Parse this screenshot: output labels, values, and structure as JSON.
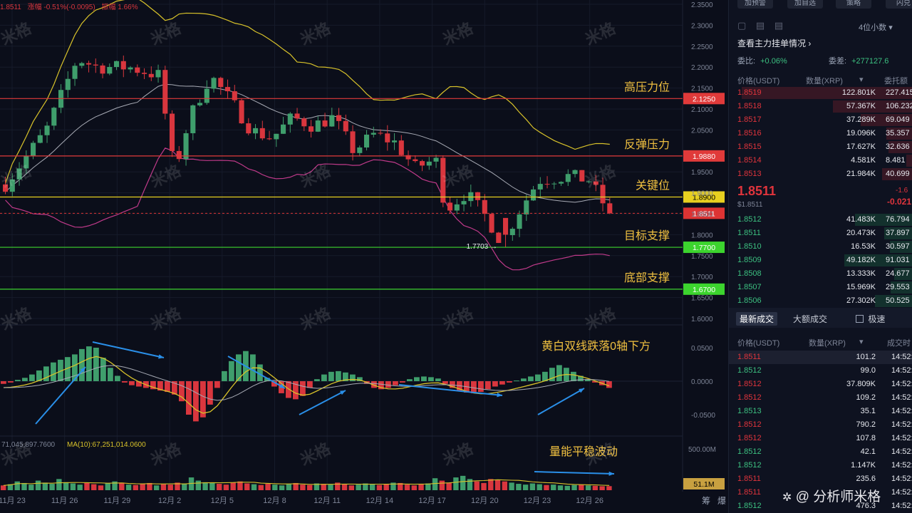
{
  "header_info": {
    "price": "1.8511",
    "change": "涨幅 -0.51%(-0.0095)",
    "amplitude": "振幅 1.66%"
  },
  "watermark": "米格",
  "footer_brand": "@ 分析师米格",
  "chart_data": [
    {
      "type": "candlestick",
      "title": "",
      "xlabel": "",
      "ylabel": "",
      "ylim": [
        1.55,
        2.36
      ],
      "y_ticks": [
        "2.3500",
        "2.3000",
        "2.2500",
        "2.2000",
        "2.1500",
        "2.1000",
        "2.0500",
        "1.9500",
        "1.9000",
        "1.8500",
        "1.8000",
        "1.7500",
        "1.7000",
        "1.6500",
        "1.6000"
      ],
      "x_ticks": [
        "11月 23",
        "11月 26",
        "11月 29",
        "12月 2",
        "12月 5",
        "12月 8",
        "12月 11",
        "12月 14",
        "12月 17",
        "12月 20",
        "12月 23",
        "12月 26"
      ],
      "close_path": [
        [
          0,
          1.92
        ],
        [
          4,
          2.05
        ],
        [
          7,
          2.22
        ],
        [
          9,
          2.2
        ],
        [
          12,
          2.2
        ],
        [
          15,
          2.18
        ],
        [
          16.5,
          1.95
        ],
        [
          18,
          2.08
        ],
        [
          20,
          2.18
        ],
        [
          22,
          2.12
        ],
        [
          24,
          2.05
        ],
        [
          26,
          2.03
        ],
        [
          28,
          2.08
        ],
        [
          30,
          2.06
        ],
        [
          32,
          2.08
        ],
        [
          34,
          2.0
        ],
        [
          36,
          2.04
        ],
        [
          38,
          2.02
        ],
        [
          40,
          1.96
        ],
        [
          42,
          1.98
        ],
        [
          43,
          1.86
        ],
        [
          45,
          1.9
        ],
        [
          47,
          1.84
        ],
        [
          48.5,
          1.78
        ],
        [
          50,
          1.85
        ],
        [
          52,
          1.93
        ],
        [
          55,
          1.94
        ],
        [
          57,
          1.93
        ],
        [
          59,
          1.85
        ]
      ],
      "price_lines": [
        {
          "value": 2.125,
          "label": "2.1250",
          "color": "#e03a3a",
          "annotation": "高压力位"
        },
        {
          "value": 1.988,
          "label": "1.9880",
          "color": "#e03a3a",
          "annotation": "反弹压力"
        },
        {
          "value": 1.89,
          "label": "1.8900",
          "color": "#e8d020",
          "annotation": "关键位"
        },
        {
          "value": 1.77,
          "label": "1.7700",
          "color": "#3cd42e",
          "annotation": "目标支撑"
        },
        {
          "value": 1.67,
          "label": "1.6700",
          "color": "#3cd42e",
          "annotation": "底部支撑"
        }
      ],
      "current_price": {
        "value": 1.8511,
        "label": "1.8511",
        "color": "#d33"
      },
      "low_marker": {
        "value": 1.7703,
        "label": "1.7703"
      }
    },
    {
      "type": "bar",
      "title": "",
      "y_ticks": [
        "0.0500",
        "0.0000",
        "-0.0500"
      ],
      "ylim": [
        -0.08,
        0.09
      ],
      "annotation": "黄白双线跌落0轴下方",
      "macd_hist": [
        -0.004,
        -0.002,
        0.002,
        0.005,
        0.01,
        0.016,
        0.022,
        0.028,
        0.032,
        0.036,
        0.04,
        0.048,
        0.052,
        0.05,
        0.035,
        0.02,
        0.008,
        -0.002,
        -0.006,
        -0.008,
        -0.01,
        -0.012,
        -0.014,
        -0.016,
        -0.02,
        -0.03,
        -0.05,
        -0.06,
        -0.054,
        -0.035,
        -0.01,
        0.015,
        0.03,
        0.04,
        0.045,
        0.04,
        0.025,
        0.005,
        -0.008,
        -0.018,
        -0.025,
        -0.027,
        -0.022,
        -0.01,
        0.003,
        0.01,
        0.014,
        0.015,
        0.013,
        0.01,
        0.006,
        -0.004,
        -0.01,
        -0.012,
        -0.01,
        -0.006,
        -0.002,
        0.003,
        0.006,
        0.007,
        0.006,
        0.004,
        -0.004,
        -0.01,
        -0.014,
        -0.017,
        -0.018,
        -0.016,
        -0.012,
        -0.008,
        -0.005,
        -0.002,
        0.001,
        0.004,
        0.007,
        0.01,
        0.014,
        0.02,
        0.024,
        0.02,
        0.014,
        0.008,
        0.003,
        -0.002,
        -0.006,
        -0.01
      ]
    },
    {
      "type": "bar",
      "title": "",
      "y_ticks": [
        "500.00M"
      ],
      "ylim": [
        0,
        580
      ],
      "annotation": "量能平稳波动",
      "legend_left": "71,045,897.7600",
      "ma_label": "MA(10):67,251,014.0600",
      "current_label": "51.1M",
      "volume_m": [
        60,
        75,
        110,
        90,
        70,
        120,
        95,
        80,
        140,
        100,
        85,
        70,
        90,
        75,
        60,
        85,
        110,
        95,
        70,
        65,
        80,
        90,
        60,
        75,
        70,
        95,
        85,
        160,
        120,
        100,
        90,
        80,
        70,
        95,
        110,
        85,
        75,
        65,
        80,
        70,
        60,
        75,
        90,
        70,
        65,
        85,
        80,
        70,
        95,
        75,
        60,
        70,
        85,
        75,
        65,
        80,
        95,
        90,
        70,
        60,
        75,
        85,
        150,
        120,
        95,
        160,
        180,
        140,
        110,
        90,
        140,
        130,
        110,
        95,
        80,
        70,
        85,
        75,
        65,
        70,
        60,
        55,
        65,
        70,
        60,
        55,
        50,
        51
      ]
    }
  ],
  "top_buttons": [
    "加预警",
    "加自选",
    "策略",
    "闪兑"
  ],
  "orderbook": {
    "interval": "4位小数",
    "main_link": "查看主力挂单情况",
    "ratio_label": "委比:",
    "ratio_value": "+0.06%",
    "diff_label": "委差:",
    "diff_value": "+277127.6",
    "headers": [
      "价格(USDT)",
      "数量(XRP)",
      "委托额"
    ],
    "asks": [
      {
        "price": "1.8519",
        "qty": "122.801K",
        "total": "227.415"
      },
      {
        "price": "1.8518",
        "qty": "57.367K",
        "total": "106.232"
      },
      {
        "price": "1.8517",
        "qty": "37.289K",
        "total": "69.049"
      },
      {
        "price": "1.8516",
        "qty": "19.096K",
        "total": "35.357"
      },
      {
        "price": "1.8515",
        "qty": "17.627K",
        "total": "32.636"
      },
      {
        "price": "1.8514",
        "qty": "4.581K",
        "total": "8.481"
      },
      {
        "price": "1.8513",
        "qty": "21.984K",
        "total": "40.699"
      }
    ],
    "last_price": "1.8511",
    "last_price_usd": "$1.8511",
    "change_pct": "-1.6",
    "change_abs": "-0.021",
    "bids": [
      {
        "price": "1.8512",
        "qty": "41.483K",
        "total": "76.794"
      },
      {
        "price": "1.8511",
        "qty": "20.473K",
        "total": "37.897"
      },
      {
        "price": "1.8510",
        "qty": "16.53K",
        "total": "30.597"
      },
      {
        "price": "1.8509",
        "qty": "49.182K",
        "total": "91.031"
      },
      {
        "price": "1.8508",
        "qty": "13.333K",
        "total": "24.677"
      },
      {
        "price": "1.8507",
        "qty": "15.969K",
        "total": "29.553"
      },
      {
        "price": "1.8506",
        "qty": "27.302K",
        "total": "50.525"
      }
    ]
  },
  "trades": {
    "tab_latest": "最新成交",
    "tab_large": "大额成交",
    "fast_label": "极速",
    "headers": [
      "价格(USDT)",
      "数量(XRP)",
      "成交时"
    ],
    "rows": [
      {
        "price": "1.8511",
        "qty": "101.2",
        "time": "14:52:",
        "side": "sell"
      },
      {
        "price": "1.8512",
        "qty": "99.0",
        "time": "14:52:",
        "side": "buy"
      },
      {
        "price": "1.8512",
        "qty": "37.809K",
        "time": "14:52:",
        "side": "sell"
      },
      {
        "price": "1.8512",
        "qty": "109.2",
        "time": "14:52:",
        "side": "sell"
      },
      {
        "price": "1.8513",
        "qty": "35.1",
        "time": "14:52:",
        "side": "buy"
      },
      {
        "price": "1.8512",
        "qty": "790.2",
        "time": "14:52:",
        "side": "sell"
      },
      {
        "price": "1.8512",
        "qty": "107.8",
        "time": "14:52:",
        "side": "sell"
      },
      {
        "price": "1.8512",
        "qty": "42.1",
        "time": "14:52:",
        "side": "buy"
      },
      {
        "price": "1.8512",
        "qty": "1.147K",
        "time": "14:52:",
        "side": "buy"
      },
      {
        "price": "1.8511",
        "qty": "235.6",
        "time": "14:52:",
        "side": "sell"
      },
      {
        "price": "1.8511",
        "qty": "",
        "time": "14:52:",
        "side": "sell"
      },
      {
        "price": "1.8512",
        "qty": "476.3",
        "time": "14:52:",
        "side": "buy"
      }
    ]
  },
  "axis_extra": [
    "筹",
    "爆"
  ],
  "colors": {
    "up": "#3f9e6c",
    "down": "#d9363e",
    "ma_yellow": "#d8c22a",
    "ma_white": "#a8abb5",
    "ma_pink": "#c03a8a",
    "annotation_text": "#f0c040",
    "arrow": "#2a8fe8"
  }
}
